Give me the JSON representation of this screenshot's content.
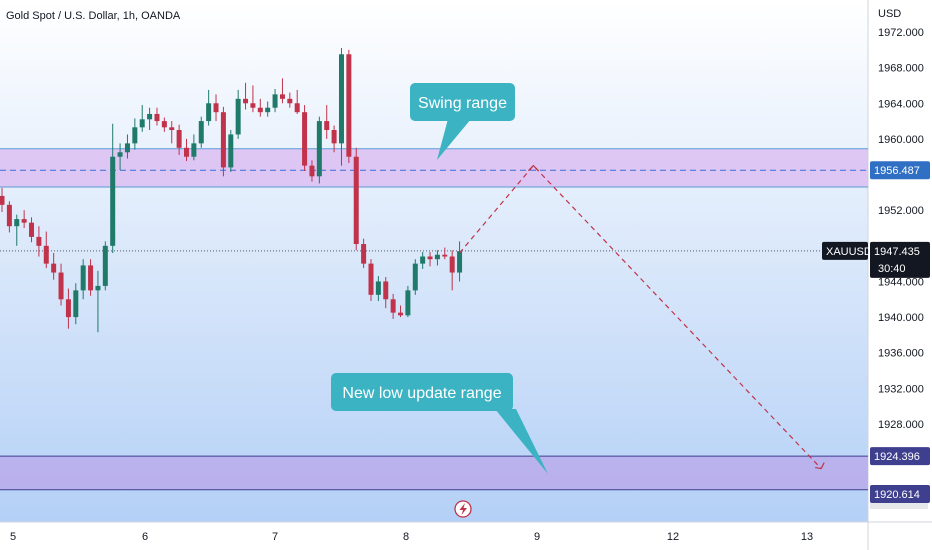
{
  "chart_data": {
    "type": "candlestick",
    "title": "Gold Spot / U.S. Dollar, 1h, OANDA",
    "symbol": "XAUUSD",
    "currency": "USD",
    "ylim": [
      1918,
      1974
    ],
    "y_ticks": [
      "1972.000",
      "1968.000",
      "1964.000",
      "1960.000",
      "1952.000",
      "1944.000",
      "1940.000",
      "1936.000",
      "1932.000",
      "1928.000"
    ],
    "x_ticks": [
      "5",
      "6",
      "7",
      "8",
      "9",
      "12",
      "13"
    ],
    "current_price": {
      "value": 1947.435,
      "label": "1947.435",
      "countdown": "30:40"
    },
    "levels": [
      {
        "value": 1956.487,
        "label": "1956.487",
        "color": "#5b9bd5"
      },
      {
        "value": 1924.396,
        "label": "1924.396",
        "color": "#3f3f8f"
      },
      {
        "value": 1920.614,
        "label": "1920.614",
        "color": "#3f3f8f"
      }
    ],
    "zones": [
      {
        "name": "Swing range",
        "from": 1954.6,
        "to": 1958.9,
        "color": "#d9b8f0"
      },
      {
        "name": "New low update range",
        "from": 1920.614,
        "to": 1924.396,
        "color": "#b9a6e8"
      }
    ],
    "callouts": [
      {
        "text": "Swing range",
        "color": "#3bb3c3"
      },
      {
        "text": "New low update range",
        "color": "#3bb3c3"
      }
    ],
    "projection": [
      {
        "index": 62,
        "value": 1947.2
      },
      {
        "index": 72,
        "value": 1957.0
      },
      {
        "index": 111,
        "value": 1923.0
      }
    ],
    "colors": {
      "up": "#1f7a6a",
      "down": "#c0334a",
      "projection": "#c0334a"
    },
    "candles": [
      [
        1953.6,
        1954.5,
        1951.8,
        1952.6
      ],
      [
        1952.6,
        1953.0,
        1949.5,
        1950.2
      ],
      [
        1950.2,
        1951.5,
        1948.0,
        1951.0
      ],
      [
        1951.0,
        1952.0,
        1950.0,
        1950.6
      ],
      [
        1950.6,
        1951.2,
        1948.4,
        1949.0
      ],
      [
        1949.0,
        1950.2,
        1946.8,
        1948.0
      ],
      [
        1948.0,
        1949.6,
        1945.5,
        1946.0
      ],
      [
        1946.0,
        1947.2,
        1944.2,
        1945.0
      ],
      [
        1945.0,
        1946.0,
        1941.3,
        1942.0
      ],
      [
        1942.0,
        1943.2,
        1938.7,
        1940.0
      ],
      [
        1940.0,
        1943.8,
        1939.2,
        1943.0
      ],
      [
        1943.0,
        1946.5,
        1942.0,
        1945.8
      ],
      [
        1945.8,
        1946.5,
        1942.4,
        1943.0
      ],
      [
        1943.0,
        1945.2,
        1938.3,
        1943.5
      ],
      [
        1943.5,
        1948.5,
        1943.0,
        1948.0
      ],
      [
        1948.0,
        1961.7,
        1947.2,
        1958.0
      ],
      [
        1958.0,
        1959.5,
        1956.5,
        1958.5
      ],
      [
        1958.5,
        1960.5,
        1957.8,
        1959.5
      ],
      [
        1959.5,
        1962.3,
        1958.8,
        1961.3
      ],
      [
        1961.3,
        1963.8,
        1960.8,
        1962.2
      ],
      [
        1962.2,
        1963.5,
        1961.0,
        1962.8
      ],
      [
        1962.8,
        1963.5,
        1961.5,
        1962.0
      ],
      [
        1962.0,
        1962.4,
        1960.8,
        1961.3
      ],
      [
        1961.3,
        1962.0,
        1959.5,
        1961.0
      ],
      [
        1961.0,
        1961.6,
        1958.2,
        1959.0
      ],
      [
        1959.0,
        1960.0,
        1957.5,
        1958.0
      ],
      [
        1958.0,
        1960.5,
        1957.6,
        1959.5
      ],
      [
        1959.5,
        1962.5,
        1959.0,
        1962.0
      ],
      [
        1962.0,
        1965.5,
        1961.5,
        1964.0
      ],
      [
        1964.0,
        1965.0,
        1962.0,
        1963.0
      ],
      [
        1963.0,
        1963.6,
        1955.8,
        1956.8
      ],
      [
        1956.8,
        1961.0,
        1956.3,
        1960.5
      ],
      [
        1960.5,
        1965.5,
        1960.0,
        1964.5
      ],
      [
        1964.5,
        1966.3,
        1963.3,
        1964.0
      ],
      [
        1964.0,
        1966.0,
        1963.0,
        1963.5
      ],
      [
        1963.5,
        1964.5,
        1962.5,
        1963.0
      ],
      [
        1963.0,
        1964.2,
        1962.5,
        1963.5
      ],
      [
        1963.5,
        1965.6,
        1963.0,
        1965.0
      ],
      [
        1965.0,
        1966.8,
        1964.0,
        1964.5
      ],
      [
        1964.5,
        1965.2,
        1963.5,
        1964.0
      ],
      [
        1964.0,
        1965.5,
        1962.8,
        1963.0
      ],
      [
        1963.0,
        1963.8,
        1956.4,
        1957.0
      ],
      [
        1957.0,
        1957.6,
        1955.2,
        1955.8
      ],
      [
        1955.8,
        1962.5,
        1955.0,
        1962.0
      ],
      [
        1962.0,
        1963.8,
        1960.0,
        1961.0
      ],
      [
        1961.0,
        1961.5,
        1958.5,
        1959.5
      ],
      [
        1959.5,
        1970.2,
        1957.0,
        1969.5
      ],
      [
        1969.5,
        1970.0,
        1957.3,
        1958.0
      ],
      [
        1958.0,
        1959.0,
        1947.5,
        1948.2
      ],
      [
        1948.2,
        1948.8,
        1945.5,
        1946.0
      ],
      [
        1946.0,
        1946.5,
        1941.8,
        1942.5
      ],
      [
        1942.5,
        1944.6,
        1941.8,
        1944.0
      ],
      [
        1944.0,
        1944.5,
        1941.0,
        1942.0
      ],
      [
        1942.0,
        1942.6,
        1939.8,
        1940.5
      ],
      [
        1940.5,
        1941.3,
        1940.0,
        1940.2
      ],
      [
        1940.2,
        1943.5,
        1940.0,
        1943.0
      ],
      [
        1943.0,
        1946.5,
        1942.5,
        1946.0
      ],
      [
        1946.0,
        1947.3,
        1945.4,
        1946.8
      ],
      [
        1946.8,
        1947.3,
        1945.7,
        1946.5
      ],
      [
        1946.5,
        1947.5,
        1945.8,
        1947.0
      ],
      [
        1947.0,
        1947.8,
        1946.5,
        1946.8
      ],
      [
        1946.8,
        1947.5,
        1943.0,
        1945.0
      ],
      [
        1945.0,
        1948.5,
        1944.0,
        1947.4
      ]
    ]
  }
}
